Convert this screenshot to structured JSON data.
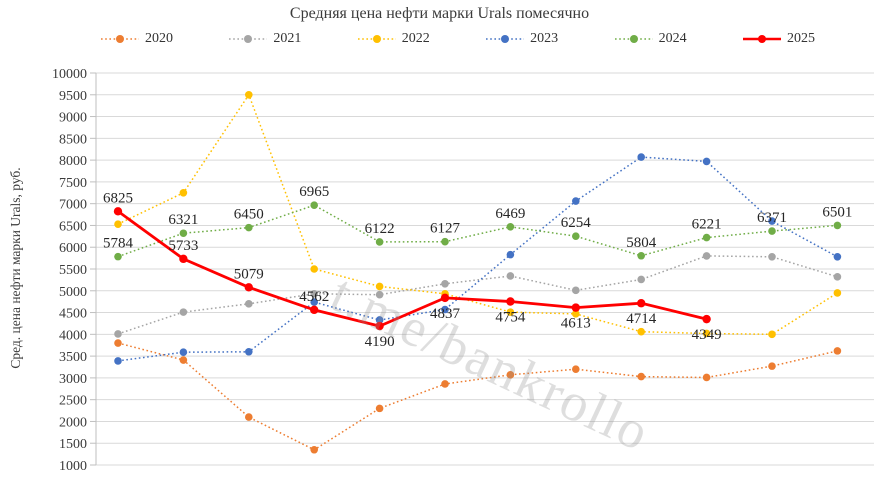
{
  "watermark": "t.me/bankrollo",
  "colors": {
    "gridline": "#D9D9D9",
    "axis": "#BFBFBF",
    "axis_text": "#3b3b3b",
    "data_label_text": "#262626"
  },
  "chart_data": {
    "type": "line",
    "title": "Средняя цена нефти марки Urals помесячно",
    "ylabel": "Сред. цена нефти марки Urals, руб.",
    "xlabel": "",
    "ylim": [
      1000,
      10000
    ],
    "y_tick_step": 500,
    "x_axis_labels_visible": false,
    "categories": [
      1,
      2,
      3,
      4,
      5,
      6,
      7,
      8,
      9,
      10,
      11,
      12
    ],
    "grid": "horizontal",
    "legend_position": "top",
    "series": [
      {
        "name": "2020",
        "color": "#ED7D31",
        "style": "dotted",
        "values": [
          3800,
          3410,
          2100,
          1350,
          2300,
          2860,
          3070,
          3200,
          3030,
          3010,
          3270,
          3620
        ]
      },
      {
        "name": "2021",
        "color": "#A5A5A5",
        "style": "dotted",
        "values": [
          4010,
          4510,
          4700,
          4930,
          4910,
          5160,
          5340,
          5010,
          5260,
          5800,
          5780,
          5320
        ]
      },
      {
        "name": "2022",
        "color": "#FFC000",
        "style": "dotted",
        "values": [
          6530,
          7250,
          9500,
          5500,
          5100,
          4930,
          4510,
          4470,
          4060,
          4020,
          4000,
          4950
        ]
      },
      {
        "name": "2023",
        "color": "#4472C4",
        "style": "dotted",
        "values": [
          3390,
          3590,
          3600,
          4740,
          4330,
          4570,
          5830,
          7060,
          8070,
          7970,
          6600,
          5780
        ]
      },
      {
        "name": "2024",
        "color": "#70AD47",
        "style": "dotted",
        "values": [
          5784,
          6321,
          6450,
          6965,
          6122,
          6127,
          6469,
          6254,
          5804,
          6221,
          6371,
          6501
        ],
        "data_labels": "above"
      },
      {
        "name": "2025",
        "color": "#FF0000",
        "style": "solid",
        "values": [
          6825,
          5733,
          5079,
          4562,
          4190,
          4837,
          4754,
          4613,
          4714,
          4349
        ],
        "data_labels": [
          "above",
          "above",
          "above",
          "above",
          "below",
          "below",
          "below",
          "below",
          "below",
          "below"
        ]
      }
    ]
  }
}
